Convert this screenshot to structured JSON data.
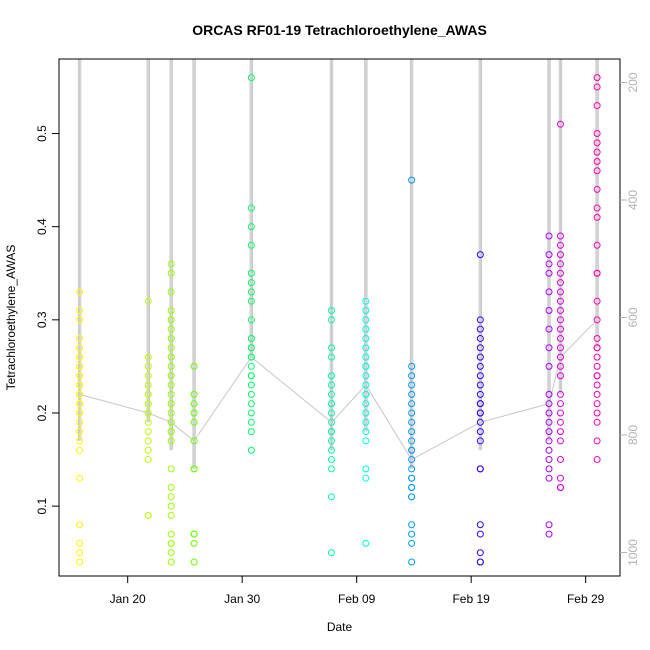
{
  "chart_data": {
    "type": "scatter",
    "title": "ORCAS RF01-19 Tetrachloroethylene_AWAS",
    "xlabel": "Date",
    "ylabel": "Tetrachloroethylene_AWAS",
    "xlim": [
      "2016-01-14",
      "2016-03-03"
    ],
    "ylim": [
      0.025,
      0.58
    ],
    "y2lim": [
      1040,
      160
    ],
    "y2_reversed": true,
    "x_ticks": [
      {
        "date": "2016-01-20",
        "label": "Jan 20"
      },
      {
        "date": "2016-01-30",
        "label": "Jan 30"
      },
      {
        "date": "2016-02-09",
        "label": "Feb 09"
      },
      {
        "date": "2016-02-19",
        "label": "Feb 19"
      },
      {
        "date": "2016-02-29",
        "label": "Feb 29"
      }
    ],
    "y_ticks": [
      0.1,
      0.2,
      0.3,
      0.4,
      0.5
    ],
    "y2_ticks": [
      200,
      400,
      600,
      800,
      1000
    ],
    "grid": false,
    "series": [
      {
        "date": "2016-01-15.8",
        "color": "#ffff00",
        "values": [
          0.04,
          0.05,
          0.06,
          0.08,
          0.13,
          0.16,
          0.17,
          0.18,
          0.19,
          0.2,
          0.2,
          0.21,
          0.21,
          0.22,
          0.22,
          0.23,
          0.23,
          0.24,
          0.24,
          0.25,
          0.25,
          0.26,
          0.26,
          0.27,
          0.28,
          0.3,
          0.31,
          0.33,
          0.21,
          0.22
        ]
      },
      {
        "date": "2016-01-21.8",
        "color": "#bfff00",
        "values": [
          0.09,
          0.15,
          0.16,
          0.17,
          0.18,
          0.19,
          0.2,
          0.21,
          0.21,
          0.22,
          0.22,
          0.23,
          0.24,
          0.25,
          0.26,
          0.32,
          0.09,
          0.2
        ]
      },
      {
        "date": "2016-01-23.8",
        "color": "#99ff00",
        "values": [
          0.04,
          0.05,
          0.06,
          0.06,
          0.07,
          0.09,
          0.1,
          0.11,
          0.12,
          0.14,
          0.17,
          0.18,
          0.19,
          0.2,
          0.21,
          0.22,
          0.23,
          0.24,
          0.25,
          0.26,
          0.27,
          0.28,
          0.29,
          0.3,
          0.31,
          0.33,
          0.35,
          0.36,
          0.19,
          0.21,
          0.24,
          0.26,
          0.28,
          0.18,
          0.3
        ]
      },
      {
        "date": "2016-01-25.8",
        "color": "#66ff00",
        "values": [
          0.04,
          0.06,
          0.07,
          0.14,
          0.17,
          0.19,
          0.2,
          0.21,
          0.22,
          0.25,
          0.07,
          0.14
        ]
      },
      {
        "date": "2016-01-30.8",
        "color": "#00ff66",
        "values": [
          0.16,
          0.18,
          0.19,
          0.2,
          0.21,
          0.22,
          0.23,
          0.24,
          0.25,
          0.26,
          0.27,
          0.28,
          0.3,
          0.32,
          0.33,
          0.34,
          0.35,
          0.38,
          0.4,
          0.42,
          0.56,
          0.24,
          0.26,
          0.28,
          0.27
        ]
      },
      {
        "date": "2016-02-06.8",
        "color": "#00ffaa",
        "values": [
          0.05,
          0.11,
          0.14,
          0.15,
          0.16,
          0.17,
          0.18,
          0.19,
          0.2,
          0.21,
          0.22,
          0.23,
          0.24,
          0.26,
          0.27,
          0.3,
          0.31,
          0.21,
          0.24,
          0.18
        ]
      },
      {
        "date": "2016-02-09.8",
        "color": "#00ffdd",
        "values": [
          0.06,
          0.13,
          0.14,
          0.17,
          0.18,
          0.19,
          0.2,
          0.21,
          0.22,
          0.23,
          0.24,
          0.25,
          0.26,
          0.27,
          0.28,
          0.29,
          0.3,
          0.31,
          0.32,
          0.22,
          0.25
        ]
      },
      {
        "date": "2016-02-13.8",
        "color": "#0099ff",
        "values": [
          0.04,
          0.06,
          0.07,
          0.08,
          0.11,
          0.11,
          0.12,
          0.13,
          0.14,
          0.15,
          0.16,
          0.17,
          0.18,
          0.19,
          0.2,
          0.21,
          0.22,
          0.23,
          0.24,
          0.25,
          0.45,
          0.12,
          0.13,
          0.16
        ]
      },
      {
        "date": "2016-02-19.8",
        "color": "#3300ff",
        "values": [
          0.04,
          0.05,
          0.07,
          0.08,
          0.14,
          0.17,
          0.18,
          0.19,
          0.2,
          0.21,
          0.22,
          0.23,
          0.24,
          0.25,
          0.26,
          0.27,
          0.28,
          0.29,
          0.3,
          0.37,
          0.04,
          0.14,
          0.2,
          0.21
        ]
      },
      {
        "date": "2016-02-25.8",
        "color": "#aa00ff",
        "values": [
          0.07,
          0.08,
          0.13,
          0.14,
          0.15,
          0.16,
          0.17,
          0.18,
          0.19,
          0.2,
          0.21,
          0.22,
          0.25,
          0.27,
          0.29,
          0.31,
          0.33,
          0.35,
          0.36,
          0.37,
          0.39
        ]
      },
      {
        "date": "2016-02-26.8",
        "color": "#dd00dd",
        "values": [
          0.12,
          0.13,
          0.15,
          0.17,
          0.18,
          0.19,
          0.2,
          0.21,
          0.22,
          0.24,
          0.25,
          0.27,
          0.28,
          0.29,
          0.3,
          0.31,
          0.32,
          0.33,
          0.34,
          0.35,
          0.36,
          0.37,
          0.38,
          0.39,
          0.51,
          0.12,
          0.26
        ]
      },
      {
        "date": "2016-03-01",
        "color": "#ff00aa",
        "values": [
          0.15,
          0.17,
          0.19,
          0.2,
          0.21,
          0.22,
          0.23,
          0.24,
          0.25,
          0.26,
          0.27,
          0.28,
          0.3,
          0.32,
          0.35,
          0.38,
          0.41,
          0.42,
          0.44,
          0.46,
          0.47,
          0.48,
          0.49,
          0.5,
          0.53,
          0.55,
          0.56,
          0.27,
          0.24,
          0.35
        ]
      }
    ]
  }
}
